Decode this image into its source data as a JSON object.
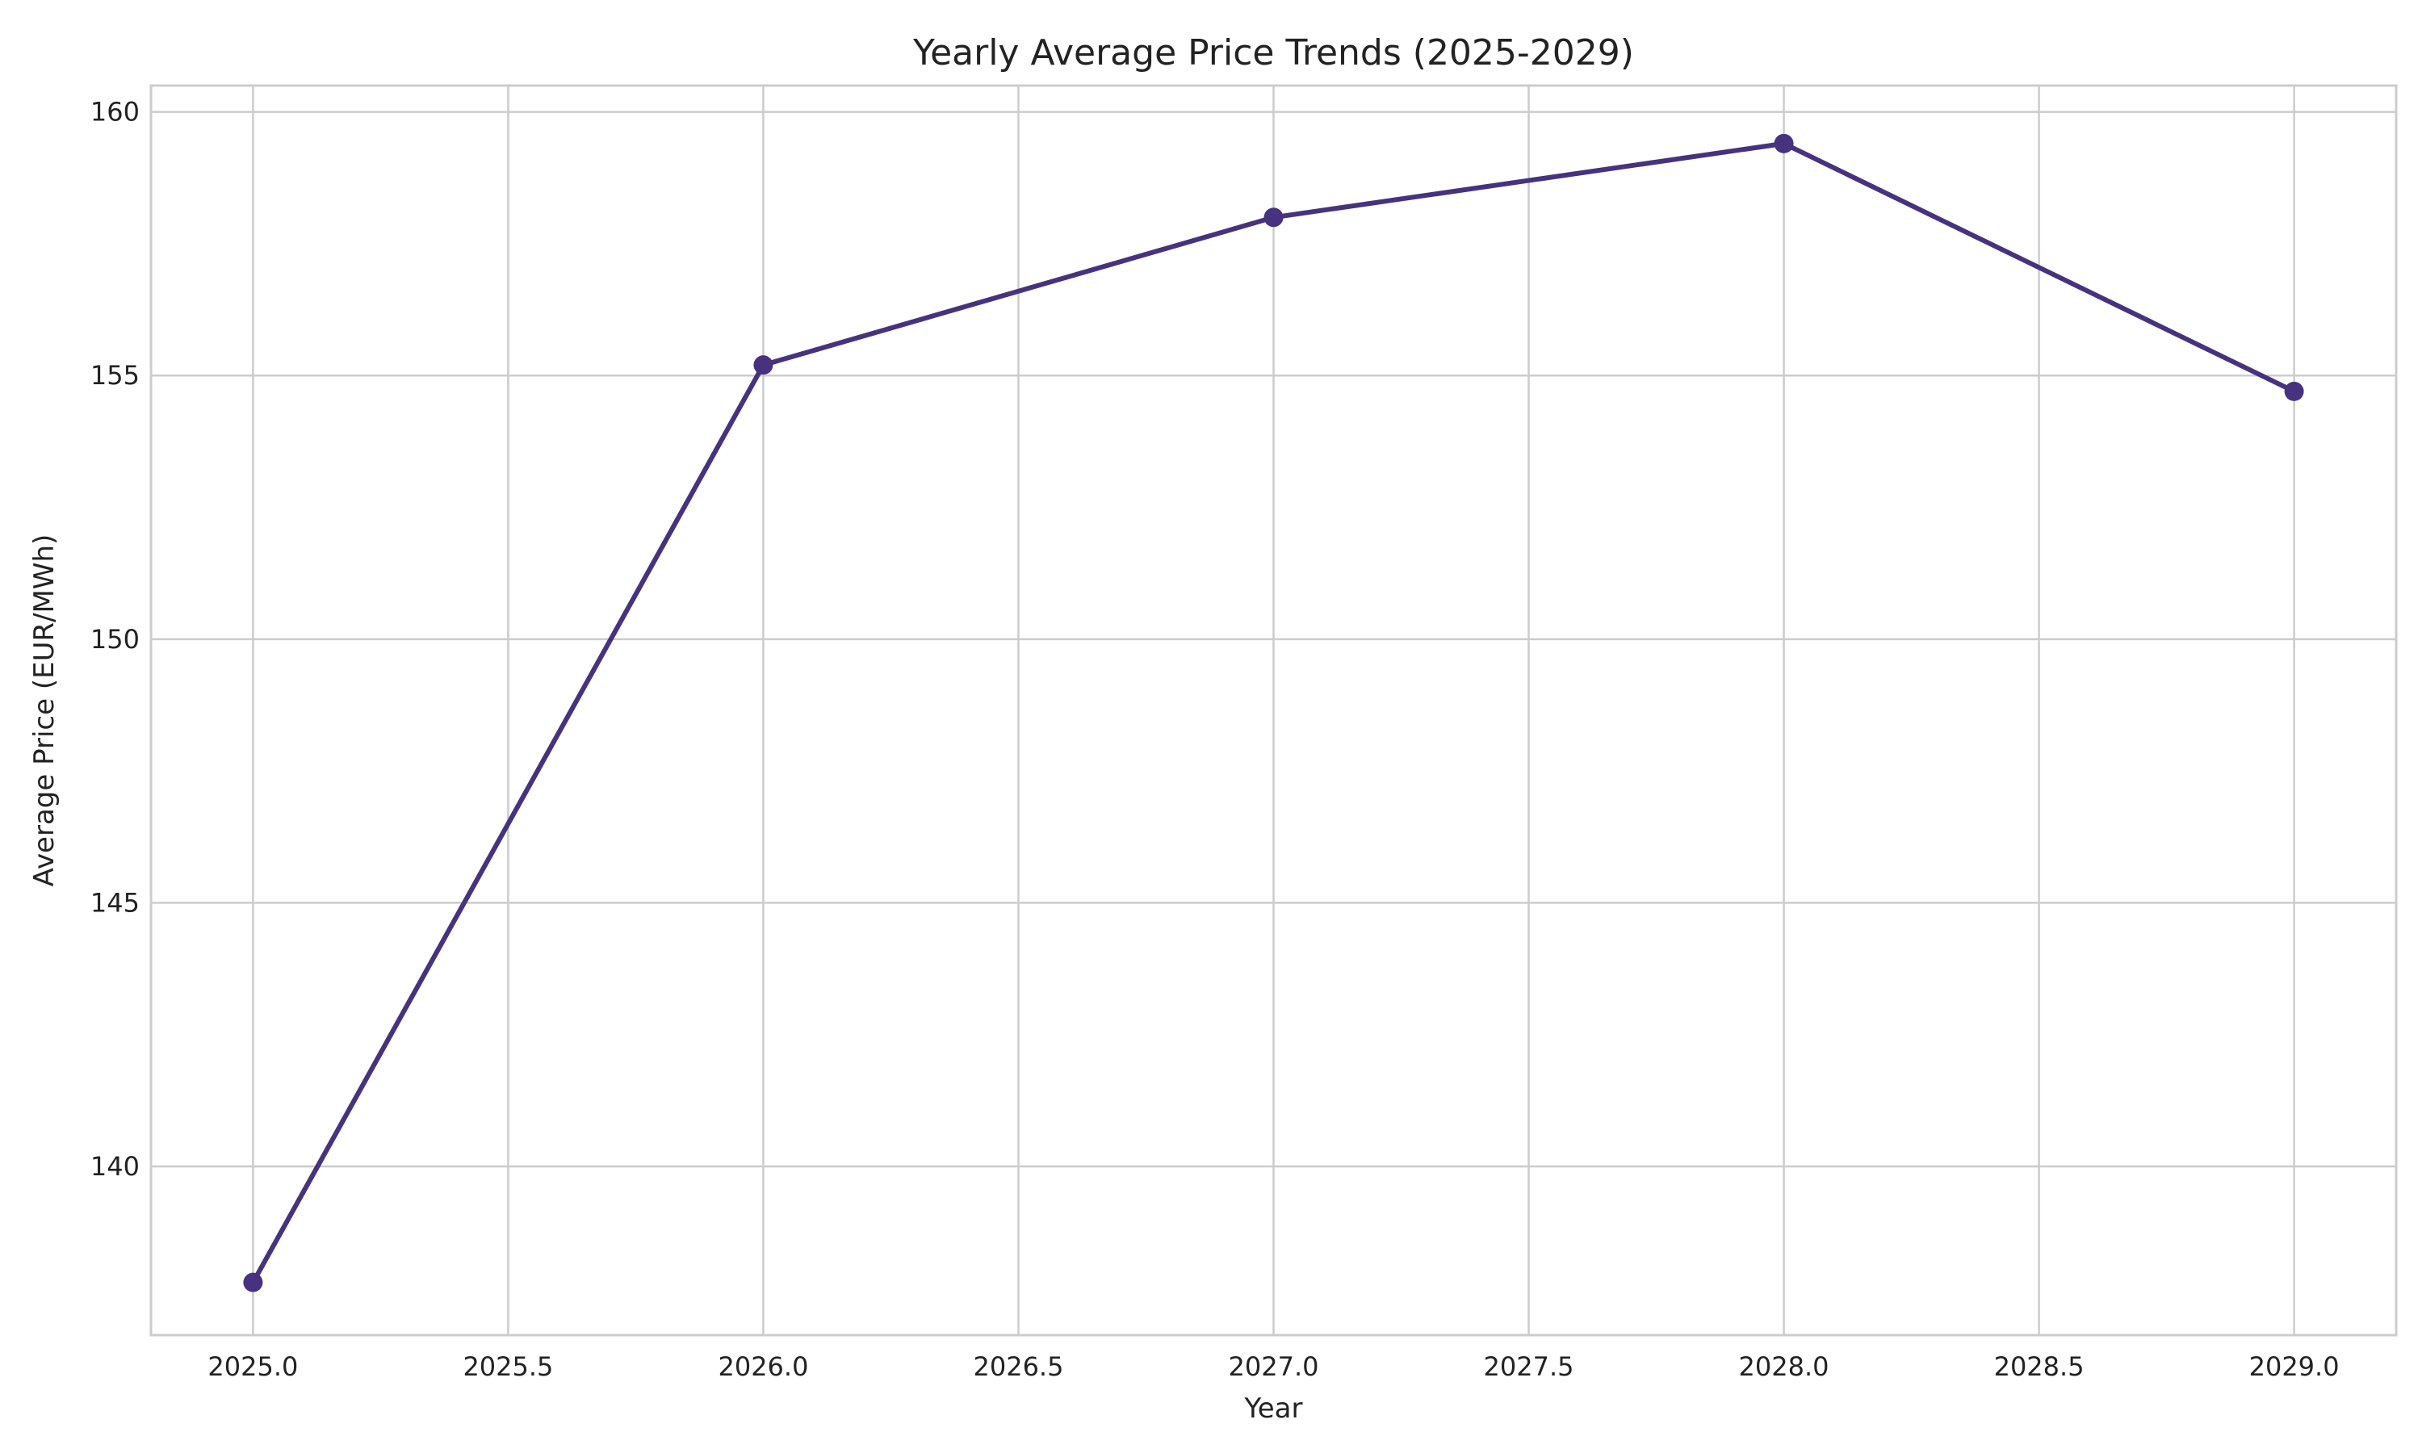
{
  "chart_data": {
    "type": "line",
    "title": "Yearly Average Price Trends (2025-2029)",
    "xlabel": "Year",
    "ylabel": "Average Price (EUR/MWh)",
    "x": [
      2025,
      2026,
      2027,
      2028,
      2029
    ],
    "series": [
      {
        "values": [
          137.8,
          155.2,
          158.0,
          159.4,
          154.7
        ],
        "color": "#46327e",
        "marker": "circle"
      }
    ],
    "xlim": [
      2024.8,
      2029.2
    ],
    "ylim": [
      136.8,
      160.5
    ],
    "x_ticks": [
      2025.0,
      2025.5,
      2026.0,
      2026.5,
      2027.0,
      2027.5,
      2028.0,
      2028.5,
      2029.0
    ],
    "x_tick_labels": [
      "2025.0",
      "2025.5",
      "2026.0",
      "2026.5",
      "2027.0",
      "2027.5",
      "2028.0",
      "2028.5",
      "2029.0"
    ],
    "y_ticks": [
      140,
      145,
      150,
      155,
      160
    ],
    "y_tick_labels": [
      "140",
      "145",
      "150",
      "155",
      "160"
    ],
    "grid": true,
    "legend": "none",
    "grid_color": "#cccccc"
  }
}
